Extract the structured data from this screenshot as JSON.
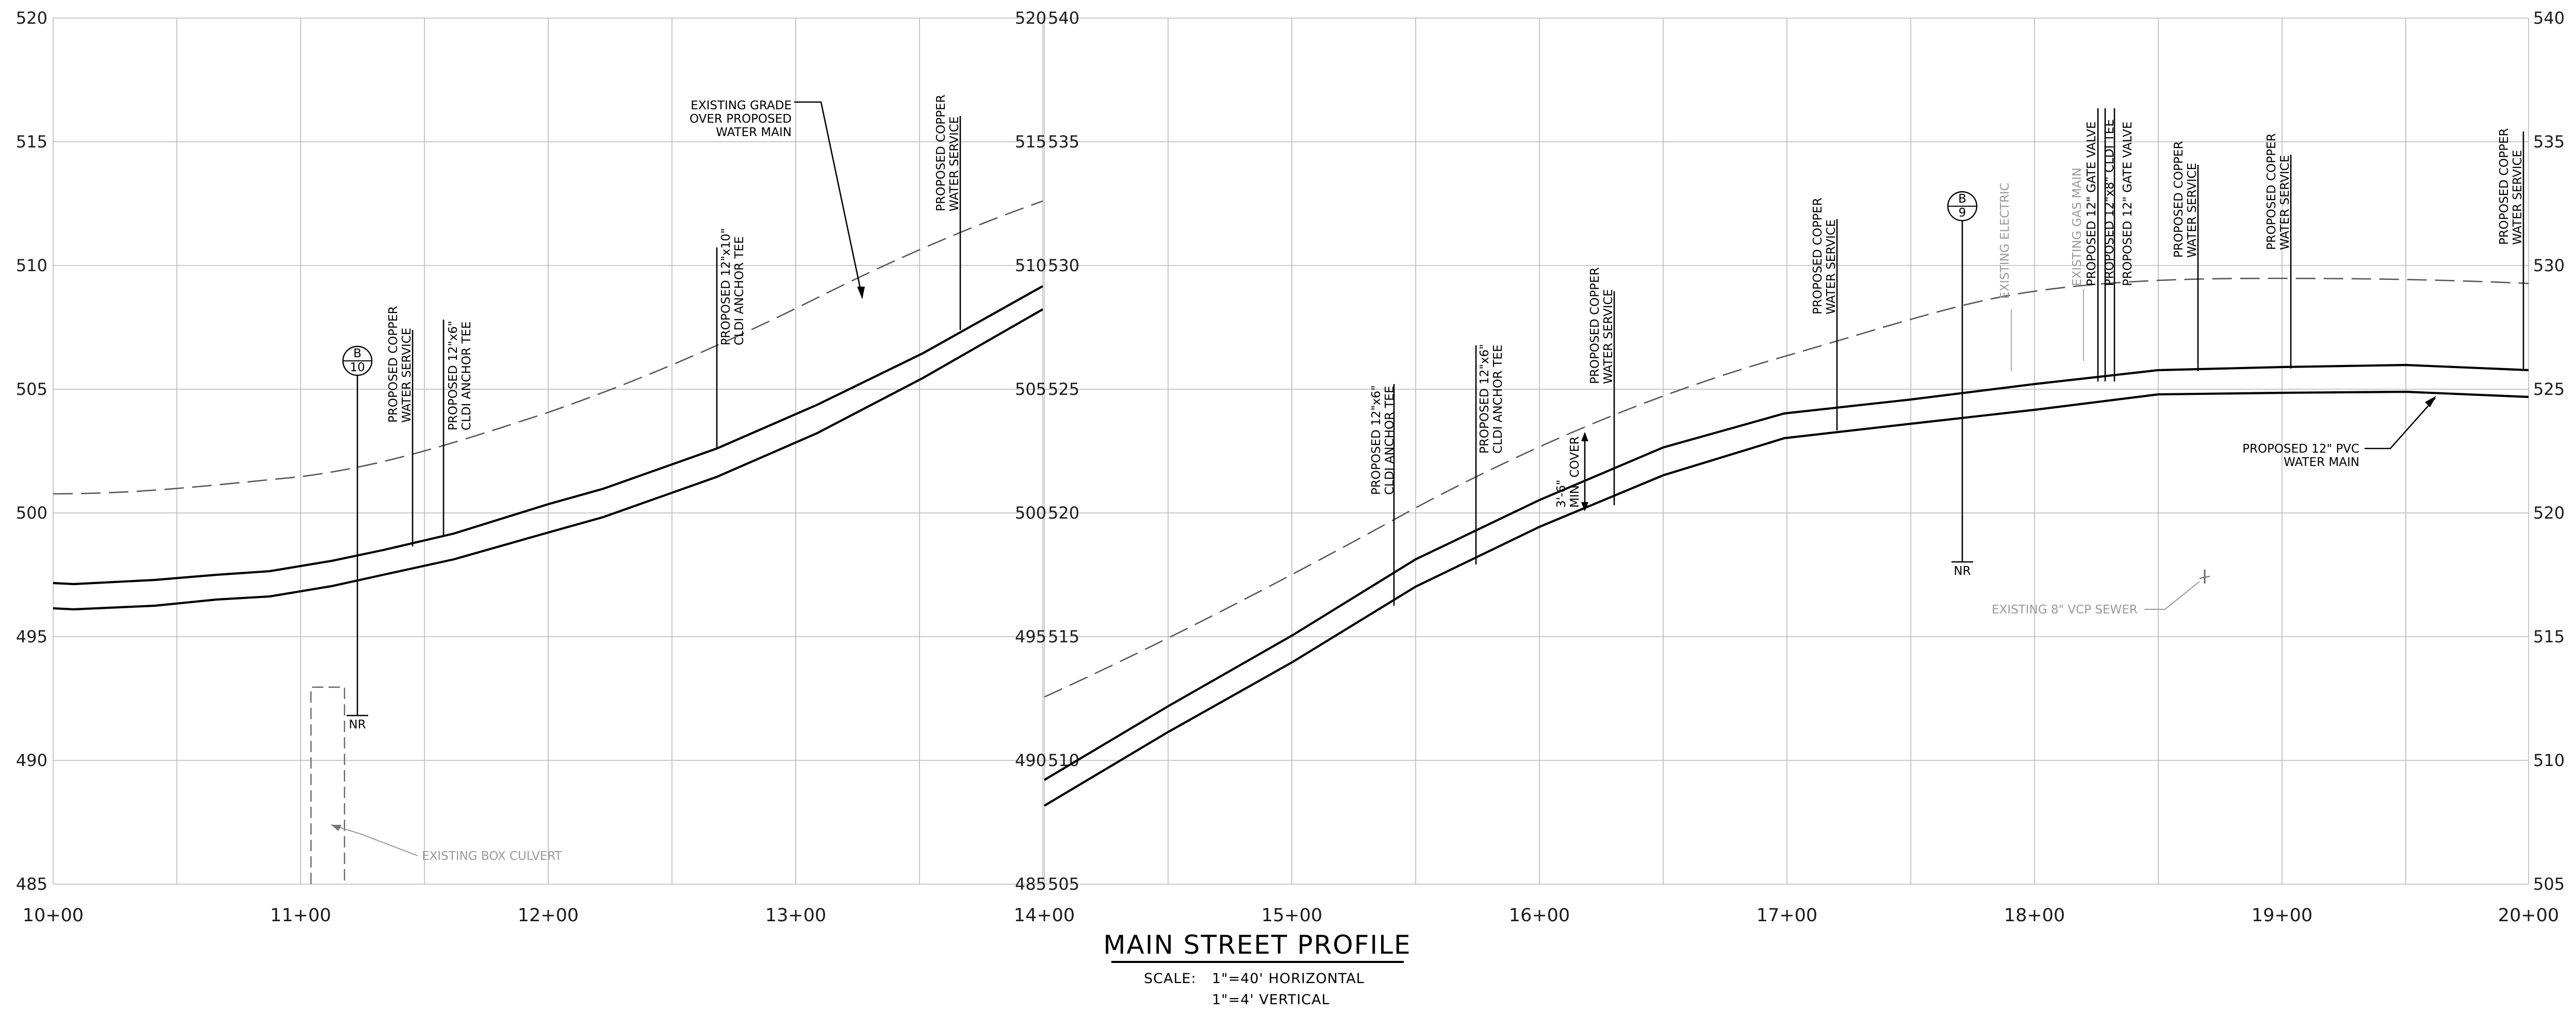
{
  "profile": {
    "title": "MAIN STREET PROFILE",
    "scale_prefix": "SCALE:",
    "scale_horizontal": "1\"=40'  HORIZONTAL",
    "scale_vertical": "1\"=4'   VERTICAL",
    "left_panel": {
      "elevations": [
        "520",
        "515",
        "510",
        "505",
        "500",
        "495",
        "490",
        "485"
      ],
      "stations": [
        "10+00",
        "11+00",
        "12+00",
        "13+00"
      ]
    },
    "right_panel": {
      "elevations": [
        "540",
        "535",
        "530",
        "525",
        "520",
        "515",
        "510",
        "505"
      ],
      "stations": [
        "14+00",
        "15+00",
        "16+00",
        "17+00",
        "18+00",
        "19+00",
        "20+00"
      ]
    },
    "left_right_axis_labels": [
      "520",
      "515",
      "510",
      "505",
      "500",
      "495",
      "490",
      "485"
    ],
    "notes": {
      "existing_grade": [
        "EXISTING GRADE",
        "OVER PROPOSED",
        "WATER MAIN"
      ],
      "copper_service": [
        "PROPOSED COPPER",
        "WATER SERVICE"
      ],
      "tee_12x6": [
        "PROPOSED 12\"x6\"",
        "CLDI ANCHOR TEE"
      ],
      "tee_12x10": [
        "PROPOSED 12\"x10\"",
        "CLDI ANCHOR TEE"
      ],
      "tee_12x6_right": [
        "PROPOSED 12\"x6\"",
        "CLDI ANCHOR TEE"
      ],
      "tee_12x6_b": [
        "PROPOSED 12\"x6\"",
        "CLDI ANCHOR TEE"
      ],
      "min_cover": [
        "3'-6\"",
        "MIN. COVER"
      ],
      "gate_valve_1": "PROPOSED 12\" GATE VALVE",
      "tee_12x8": "PROPOSED 12\"x8\" CLDI TEE",
      "gate_valve_2": "PROPOSED 12\" GATE VALVE",
      "pvc_main": [
        "PROPOSED 12\" PVC",
        "WATER MAIN"
      ],
      "box_culvert": "EXISTING BOX CULVERT",
      "vcp_sewer": "EXISTING 8\" VCP SEWER",
      "gas_main": "EXISTING GAS MAIN",
      "electric": "EXISTING ELECTRIC",
      "boring_b10_top": "B",
      "boring_b10_bottom": "10",
      "boring_b9_top": "B",
      "boring_b9_bottom": "9",
      "nr": "NR"
    }
  }
}
